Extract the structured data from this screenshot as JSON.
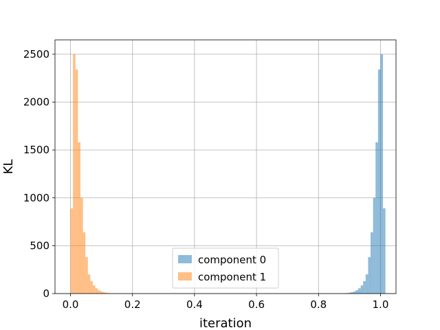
{
  "chart_data": {
    "type": "histogram",
    "xlabel": "iteration",
    "ylabel": "KL",
    "xlim": [
      -0.05,
      1.05
    ],
    "ylim": [
      0,
      2650
    ],
    "grid": true,
    "legend_position": "lower-center",
    "xticks": [
      0.0,
      0.2,
      0.4,
      0.6,
      0.8,
      1.0
    ],
    "xtick_labels": [
      "0.0",
      "0.2",
      "0.4",
      "0.6",
      "0.8",
      "1.0"
    ],
    "yticks": [
      0,
      500,
      1000,
      1500,
      2000,
      2500
    ],
    "ytick_labels": [
      "0",
      "500",
      "1000",
      "1500",
      "2000",
      "2500"
    ],
    "series": [
      {
        "name": "component 0",
        "color": "#1f77b4",
        "alpha": 0.5,
        "bins": [
          {
            "x0": 0.88,
            "x1": 0.888,
            "count": 3
          },
          {
            "x0": 0.888,
            "x1": 0.896,
            "count": 5
          },
          {
            "x0": 0.896,
            "x1": 0.904,
            "count": 8
          },
          {
            "x0": 0.904,
            "x1": 0.912,
            "count": 14
          },
          {
            "x0": 0.912,
            "x1": 0.92,
            "count": 22
          },
          {
            "x0": 0.92,
            "x1": 0.928,
            "count": 35
          },
          {
            "x0": 0.928,
            "x1": 0.936,
            "count": 55
          },
          {
            "x0": 0.936,
            "x1": 0.944,
            "count": 85
          },
          {
            "x0": 0.944,
            "x1": 0.952,
            "count": 130
          },
          {
            "x0": 0.952,
            "x1": 0.96,
            "count": 200
          },
          {
            "x0": 0.96,
            "x1": 0.968,
            "count": 380
          },
          {
            "x0": 0.968,
            "x1": 0.976,
            "count": 640
          },
          {
            "x0": 0.976,
            "x1": 0.984,
            "count": 1000
          },
          {
            "x0": 0.984,
            "x1": 0.992,
            "count": 1580
          },
          {
            "x0": 0.992,
            "x1": 1.0,
            "count": 2340
          },
          {
            "x0": 1.0,
            "x1": 1.008,
            "count": 2500
          },
          {
            "x0": 1.008,
            "x1": 1.016,
            "count": 890
          }
        ]
      },
      {
        "name": "component 1",
        "color": "#ff7f0e",
        "alpha": 0.5,
        "bins": [
          {
            "x0": 0.0,
            "x1": 0.008,
            "count": 890
          },
          {
            "x0": 0.008,
            "x1": 0.016,
            "count": 2500
          },
          {
            "x0": 0.016,
            "x1": 0.024,
            "count": 2340
          },
          {
            "x0": 0.024,
            "x1": 0.032,
            "count": 1580
          },
          {
            "x0": 0.032,
            "x1": 0.04,
            "count": 1000
          },
          {
            "x0": 0.04,
            "x1": 0.048,
            "count": 640
          },
          {
            "x0": 0.048,
            "x1": 0.056,
            "count": 380
          },
          {
            "x0": 0.056,
            "x1": 0.064,
            "count": 200
          },
          {
            "x0": 0.064,
            "x1": 0.072,
            "count": 130
          },
          {
            "x0": 0.072,
            "x1": 0.08,
            "count": 85
          },
          {
            "x0": 0.08,
            "x1": 0.088,
            "count": 55
          },
          {
            "x0": 0.088,
            "x1": 0.096,
            "count": 35
          },
          {
            "x0": 0.096,
            "x1": 0.104,
            "count": 22
          },
          {
            "x0": 0.104,
            "x1": 0.112,
            "count": 14
          },
          {
            "x0": 0.112,
            "x1": 0.12,
            "count": 8
          },
          {
            "x0": 0.12,
            "x1": 0.128,
            "count": 5
          },
          {
            "x0": 0.128,
            "x1": 0.136,
            "count": 3
          }
        ]
      }
    ]
  }
}
